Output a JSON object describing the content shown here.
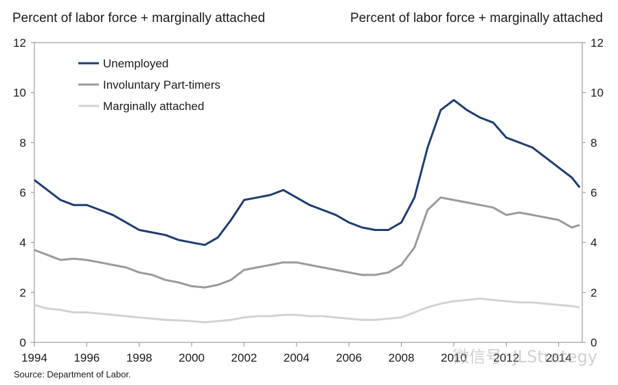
{
  "chart_data": {
    "type": "line",
    "ylabel_left": "Percent of labor force + marginally attached",
    "ylabel_right": "Percent of labor force + marginally attached",
    "ylim": [
      0,
      12
    ],
    "yticks": [
      "0",
      "2",
      "4",
      "6",
      "8",
      "10",
      "12"
    ],
    "xlim": [
      1994,
      2014.9
    ],
    "xticks": [
      "1994",
      "1996",
      "1998",
      "2000",
      "2002",
      "2004",
      "2006",
      "2008",
      "2010",
      "2012",
      "2014"
    ],
    "legend_position": "top-left",
    "series": [
      {
        "name": "Unemployed",
        "color": "#1f3d6e",
        "x": [
          1994,
          1994.5,
          1995,
          1995.5,
          1996,
          1996.5,
          1997,
          1997.5,
          1998,
          1998.5,
          1999,
          1999.5,
          2000,
          2000.5,
          2001,
          2001.5,
          2002,
          2002.5,
          2003,
          2003.5,
          2004,
          2004.5,
          2005,
          2005.5,
          2006,
          2006.5,
          2007,
          2007.5,
          2008,
          2008.5,
          2009,
          2009.5,
          2010,
          2010.5,
          2011,
          2011.5,
          2012,
          2012.5,
          2013,
          2013.5,
          2014,
          2014.5,
          2014.8
        ],
        "y": [
          6.5,
          6.1,
          5.7,
          5.5,
          5.5,
          5.3,
          5.1,
          4.8,
          4.5,
          4.4,
          4.3,
          4.1,
          4.0,
          3.9,
          4.2,
          4.9,
          5.7,
          5.8,
          5.9,
          6.1,
          5.8,
          5.5,
          5.3,
          5.1,
          4.8,
          4.6,
          4.5,
          4.5,
          4.8,
          5.8,
          7.8,
          9.3,
          9.7,
          9.3,
          9.0,
          8.8,
          8.2,
          8.0,
          7.8,
          7.4,
          7.0,
          6.6,
          6.2
        ]
      },
      {
        "name": "Involuntary Part-timers",
        "color": "#9a9a9a",
        "x": [
          1994,
          1994.5,
          1995,
          1995.5,
          1996,
          1996.5,
          1997,
          1997.5,
          1998,
          1998.5,
          1999,
          1999.5,
          2000,
          2000.5,
          2001,
          2001.5,
          2002,
          2002.5,
          2003,
          2003.5,
          2004,
          2004.5,
          2005,
          2005.5,
          2006,
          2006.5,
          2007,
          2007.5,
          2008,
          2008.5,
          2009,
          2009.5,
          2010,
          2010.5,
          2011,
          2011.5,
          2012,
          2012.5,
          2013,
          2013.5,
          2014,
          2014.5,
          2014.8
        ],
        "y": [
          3.7,
          3.5,
          3.3,
          3.35,
          3.3,
          3.2,
          3.1,
          3.0,
          2.8,
          2.7,
          2.5,
          2.4,
          2.25,
          2.2,
          2.3,
          2.5,
          2.9,
          3.0,
          3.1,
          3.2,
          3.2,
          3.1,
          3.0,
          2.9,
          2.8,
          2.7,
          2.7,
          2.8,
          3.1,
          3.8,
          5.3,
          5.8,
          5.7,
          5.6,
          5.5,
          5.4,
          5.1,
          5.2,
          5.1,
          5.0,
          4.9,
          4.6,
          4.7
        ]
      },
      {
        "name": "Marginally attached",
        "color": "#d2d2d2",
        "x": [
          1994,
          1994.5,
          1995,
          1995.5,
          1996,
          1996.5,
          1997,
          1997.5,
          1998,
          1998.5,
          1999,
          1999.5,
          2000,
          2000.5,
          2001,
          2001.5,
          2002,
          2002.5,
          2003,
          2003.5,
          2004,
          2004.5,
          2005,
          2005.5,
          2006,
          2006.5,
          2007,
          2007.5,
          2008,
          2008.5,
          2009,
          2009.5,
          2010,
          2010.5,
          2011,
          2011.5,
          2012,
          2012.5,
          2013,
          2013.5,
          2014,
          2014.5,
          2014.8
        ],
        "y": [
          1.5,
          1.35,
          1.3,
          1.2,
          1.2,
          1.15,
          1.1,
          1.05,
          1.0,
          0.95,
          0.9,
          0.88,
          0.85,
          0.8,
          0.85,
          0.9,
          1.0,
          1.05,
          1.05,
          1.1,
          1.1,
          1.05,
          1.05,
          1.0,
          0.95,
          0.9,
          0.9,
          0.95,
          1.0,
          1.2,
          1.4,
          1.55,
          1.65,
          1.7,
          1.75,
          1.7,
          1.65,
          1.6,
          1.6,
          1.55,
          1.5,
          1.45,
          1.4
        ]
      }
    ]
  },
  "source_text": "Source: Department of Labor.",
  "watermark_text": "微信号: JLStrategy"
}
